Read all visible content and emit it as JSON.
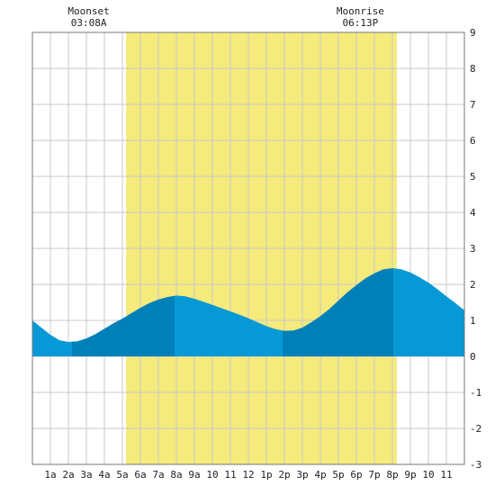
{
  "chart_data": {
    "type": "area",
    "title": "",
    "xlabel": "",
    "ylabel": "",
    "x_range_hours": [
      0,
      24
    ],
    "ylim": [
      -3,
      9
    ],
    "y_ticks": [
      9,
      8,
      7,
      6,
      5,
      4,
      3,
      2,
      1,
      0,
      -1,
      -2,
      -3
    ],
    "x_tick_hours": [
      1,
      2,
      3,
      4,
      5,
      6,
      7,
      8,
      9,
      10,
      11,
      12,
      13,
      14,
      15,
      16,
      17,
      18,
      19,
      20,
      21,
      22,
      23
    ],
    "x_tick_labels": [
      "1a",
      "2a",
      "3a",
      "4a",
      "5a",
      "6a",
      "7a",
      "8a",
      "9a",
      "10",
      "11",
      "12",
      "1p",
      "2p",
      "3p",
      "4p",
      "5p",
      "6p",
      "7p",
      "8p",
      "9p",
      "10",
      "11"
    ],
    "grid": true,
    "daylight_hours": [
      5.2,
      20.25
    ],
    "tide_extremes": [
      {
        "hour": 2.2,
        "height": 0.4,
        "kind": "low"
      },
      {
        "hour": 7.9,
        "height": 1.7,
        "kind": "high"
      },
      {
        "hour": 13.9,
        "height": 0.7,
        "kind": "low"
      },
      {
        "hour": 20.05,
        "height": 2.45,
        "kind": "high"
      }
    ],
    "series": [
      {
        "x": [
          0,
          0.5,
          1,
          1.5,
          2,
          2.5,
          3,
          3.5,
          4,
          4.5,
          5,
          5.5,
          6,
          6.5,
          7,
          7.5,
          8,
          8.5,
          9,
          9.5,
          10,
          10.5,
          11,
          11.5,
          12,
          12.5,
          13,
          13.5,
          14,
          14.5,
          15,
          15.5,
          16,
          16.5,
          17,
          17.5,
          18,
          18.5,
          19,
          19.5,
          20,
          20.5,
          21,
          21.5,
          22,
          22.5,
          23,
          23.5,
          24
        ],
        "values": [
          1.0,
          0.8,
          0.6,
          0.45,
          0.4,
          0.42,
          0.5,
          0.62,
          0.77,
          0.92,
          1.05,
          1.2,
          1.35,
          1.48,
          1.58,
          1.65,
          1.69,
          1.67,
          1.6,
          1.52,
          1.43,
          1.34,
          1.25,
          1.16,
          1.06,
          0.95,
          0.84,
          0.76,
          0.71,
          0.72,
          0.8,
          0.95,
          1.12,
          1.32,
          1.55,
          1.78,
          1.98,
          2.17,
          2.31,
          2.42,
          2.45,
          2.42,
          2.33,
          2.2,
          2.05,
          1.87,
          1.67,
          1.48,
          1.28
        ]
      }
    ],
    "events": [
      {
        "name": "Moonset",
        "time": "03:08A",
        "hour": 3.13
      },
      {
        "name": "Moonrise",
        "time": "06:13P",
        "hour": 18.22
      }
    ],
    "colors": {
      "daylight": "#f5ea7c",
      "tide_light": "#0699d6",
      "tide_dark": "#0080b9",
      "grid": "#c8c8c8"
    }
  }
}
